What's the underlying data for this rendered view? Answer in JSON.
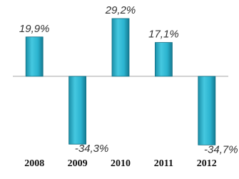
{
  "chart_data": {
    "type": "bar",
    "categories": [
      "2008",
      "2009",
      "2010",
      "2011",
      "2012"
    ],
    "values": [
      19.9,
      -34.3,
      29.2,
      17.1,
      -34.7
    ],
    "value_labels": [
      "19,9%",
      "-34,3%",
      "29,2%",
      "17,1%",
      "-34,7%"
    ],
    "color": "#2bb3cf"
  }
}
